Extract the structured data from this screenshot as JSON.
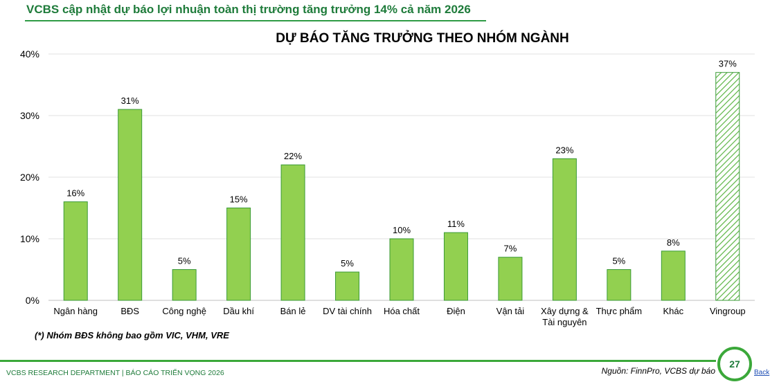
{
  "header": {
    "title": "VCBS cập nhật dự báo lợi nhuận toàn thị trường tăng trưởng 14% cả năm 2026"
  },
  "chart_data": {
    "type": "bar",
    "title": "DỰ BÁO TĂNG TRƯỞNG THEO NHÓM NGÀNH",
    "xlabel": "",
    "ylabel": "",
    "ylim": [
      0,
      40
    ],
    "yticks": [
      "0%",
      "10%",
      "20%",
      "30%",
      "40%"
    ],
    "grid": true,
    "categories": [
      "Ngân hàng",
      "BĐS",
      "Công nghệ",
      "Dầu khí",
      "Bán lẻ",
      "DV tài chính",
      "Hóa chất",
      "Điện",
      "Vận tải",
      "Xây dựng & Tài nguyên",
      "Thực phẩm",
      "Khác",
      "Vingroup"
    ],
    "category_lines": [
      [
        "Ngân hàng"
      ],
      [
        "BĐS"
      ],
      [
        "Công nghệ"
      ],
      [
        "Dầu khí"
      ],
      [
        "Bán lẻ"
      ],
      [
        "DV tài chính"
      ],
      [
        "Hóa chất"
      ],
      [
        "Điện"
      ],
      [
        "Vận tải"
      ],
      [
        "Xây dựng &",
        "Tài nguyên"
      ],
      [
        "Thực phẩm"
      ],
      [
        "Khác"
      ],
      [
        "Vingroup"
      ]
    ],
    "values": [
      16,
      31,
      5,
      15,
      22,
      4.6,
      10,
      11,
      7,
      23,
      5,
      8,
      37
    ],
    "data_labels": [
      "16%",
      "31%",
      "5%",
      "15%",
      "22%",
      "5%",
      "10%",
      "11%",
      "7%",
      "23%",
      "5%",
      "8%",
      "37%"
    ],
    "bar_color": "#92d050",
    "bar_edge_color": "#3a9a36",
    "highlight_style": "hatched",
    "highlight_index": 12
  },
  "footnote": "(*) Nhóm BĐS không bao gồm VIC, VHM, VRE",
  "footer": {
    "left": "VCBS RESEARCH DEPARTMENT | BÁO CÁO TRIỂN VỌNG 2026",
    "source": "Nguồn: FinnPro, VCBS dự báo",
    "page": "27",
    "back": "Back"
  },
  "colors": {
    "brand_green": "#1e7b3a",
    "accent_green": "#3ba83a"
  }
}
